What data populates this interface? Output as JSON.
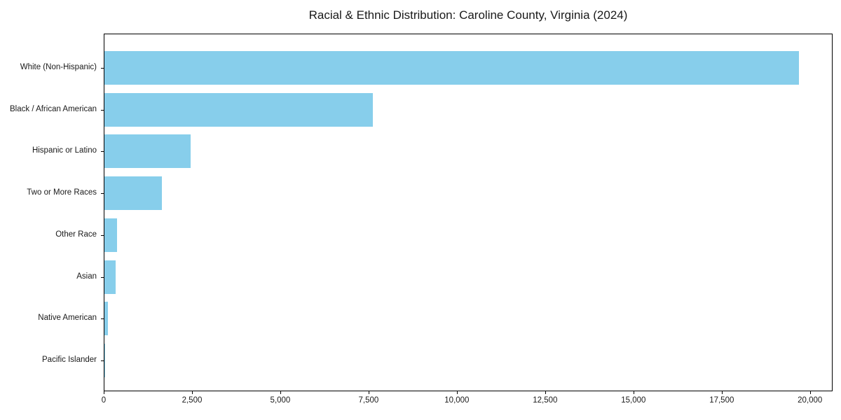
{
  "figure": {
    "background": "#ffffff"
  },
  "chart_data": {
    "type": "bar",
    "orientation": "horizontal",
    "title": "Racial & Ethnic Distribution: Caroline County, Virginia (2024)",
    "categories": [
      "White (Non-Hispanic)",
      "Black / African American",
      "Hispanic or Latino",
      "Two or More Races",
      "Other Race",
      "Asian",
      "Native American",
      "Pacific Islander"
    ],
    "values": [
      19660,
      7600,
      2450,
      1630,
      350,
      320,
      100,
      15
    ],
    "xlabel": "",
    "ylabel": "",
    "xlim": [
      0,
      20640
    ],
    "xticks": [
      0,
      2500,
      5000,
      7500,
      10000,
      12500,
      15000,
      17500,
      20000
    ],
    "xtick_labels": [
      "0",
      "2,500",
      "5,000",
      "7,500",
      "10,000",
      "12,500",
      "15,000",
      "17,500",
      "20,000"
    ],
    "grid": false,
    "legend": "none",
    "bar_color": "#87CEEB",
    "axis_color": "#000000",
    "text_color": "#1a1a1a"
  }
}
